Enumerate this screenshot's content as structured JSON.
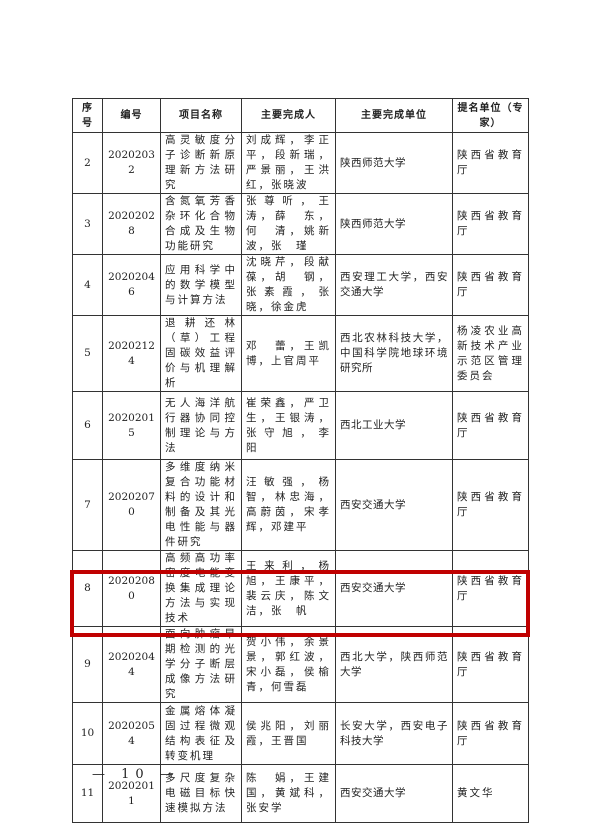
{
  "table": {
    "headers": [
      "序号",
      "编号",
      "项目名称",
      "主要完成人",
      "主要完成单位",
      "提名单位（专家）"
    ],
    "rows": [
      {
        "no": "2",
        "code": "20202032",
        "name": "高灵敏度分子诊断新原理新方法研究",
        "people": "刘成辉，李正平，段新瑞，严景丽，王洪红，张晓波",
        "unit": "陕西师范大学",
        "nominator": "陕西省教育厅"
      },
      {
        "no": "3",
        "code": "20202028",
        "name": "含氮氧芳香杂环化合物合成及生物功能研究",
        "people": "张尊听，王　涛，薛　东，何　清，姚新波，张　瑾",
        "unit": "陕西师范大学",
        "nominator": "陕西省教育厅"
      },
      {
        "no": "4",
        "code": "20202046",
        "name": "应用科学中的数学模型与计算方法",
        "people": "沈晓芹，段献葆，胡　钢，张素霞，张　晓，徐金虎",
        "unit": "西安理工大学，西安交通大学",
        "nominator": "陕西省教育厅"
      },
      {
        "no": "5",
        "code": "20202124",
        "name": "退耕还林（草）工程固碳效益评价与机理解析",
        "people": "邓　蕾，王凯博，上官周平",
        "unit": "西北农林科技大学，中国科学院地球环境研究所",
        "nominator": "杨凌农业高新技术产业示范区管理委员会"
      },
      {
        "no": "6",
        "code": "20202015",
        "name": "无人海洋航行器协同控制理论与方法",
        "people": "崔荣鑫，严卫生，王银涛，张守旭，李　阳",
        "unit": "西北工业大学",
        "nominator": "陕西省教育厅"
      },
      {
        "no": "7",
        "code": "20202070",
        "name": "多维度纳米复合功能材料的设计和制备及其光电性能与器件研究",
        "people": "汪敏强，杨　智，林忠海，高蔚茵，宋孝辉，邓建平",
        "unit": "西安交通大学",
        "nominator": "陕西省教育厅"
      },
      {
        "no": "8",
        "code": "20202080",
        "name": "高频高功率密度电能变换集成理论方法与实现技术",
        "people": "王来利，杨　旭，王康平，裴云庆，陈文洁，张　帆",
        "unit": "西安交通大学",
        "nominator": "陕西省教育厅"
      },
      {
        "no": "9",
        "code": "20202044",
        "name": "面向肿瘤早期检测的光学分子断层成像方法研究",
        "people": "贺小伟，余景景，郭红波，宋小磊，侯榆青，何雪磊",
        "unit": "西北大学，陕西师范大学",
        "nominator": "陕西省教育厅"
      },
      {
        "no": "10",
        "code": "20202054",
        "name": "金属熔体凝固过程微观结构表征及转变机理",
        "people": "侯兆阳，刘丽霞，王晋国",
        "unit": "长安大学，西安电子科技大学",
        "nominator": "陕西省教育厅"
      },
      {
        "no": "11",
        "code": "20202011",
        "name": "多尺度复杂电磁目标快速模拟方法",
        "people": "陈　娟，王建国，黄斌科，张安学",
        "unit": "西安交通大学",
        "nominator": "黄文华"
      }
    ],
    "highlight_color": "#c00000"
  },
  "page_number": "— 10 —"
}
